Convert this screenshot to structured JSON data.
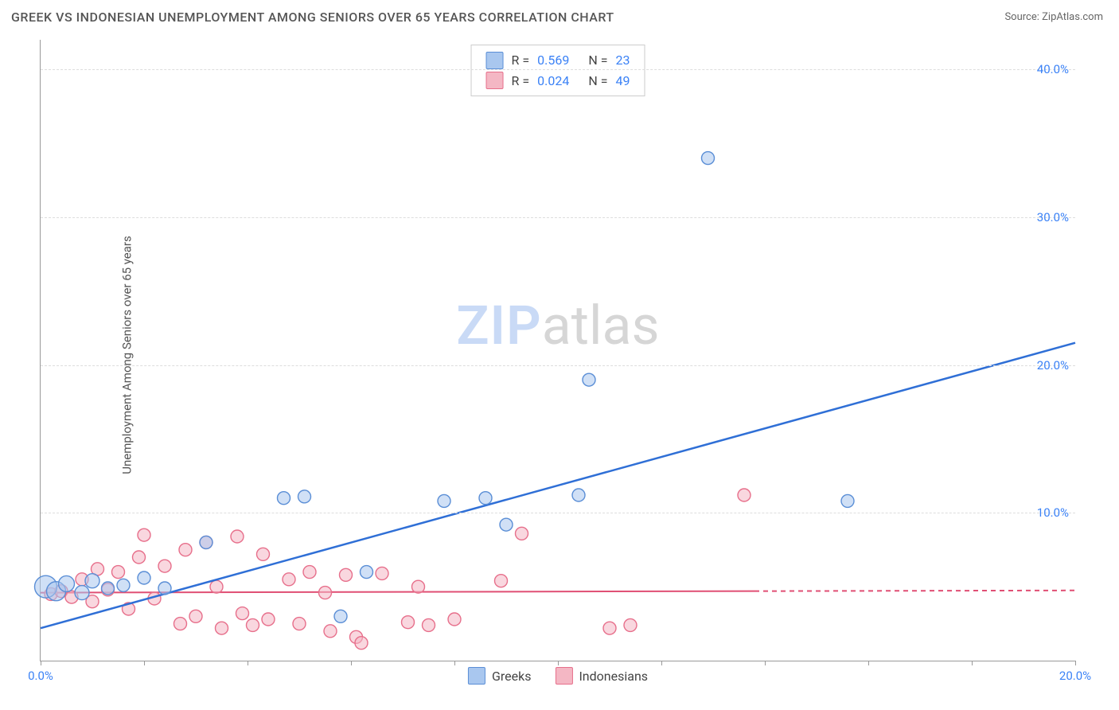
{
  "title": "GREEK VS INDONESIAN UNEMPLOYMENT AMONG SENIORS OVER 65 YEARS CORRELATION CHART",
  "source_label": "Source:",
  "source_name": "ZipAtlas.com",
  "ylabel": "Unemployment Among Seniors over 65 years",
  "watermark_a": "ZIP",
  "watermark_b": "atlas",
  "chart": {
    "type": "scatter",
    "xlim": [
      0,
      20
    ],
    "ylim": [
      0,
      42
    ],
    "xticks": [
      0,
      20
    ],
    "xtick_labels": [
      "0.0%",
      "20.0%"
    ],
    "yticks": [
      10,
      20,
      30,
      40
    ],
    "ytick_labels": [
      "10.0%",
      "20.0%",
      "30.0%",
      "40.0%"
    ],
    "xminor_step": 2,
    "grid_color": "#dddddd",
    "axis_color": "#999999",
    "background_color": "#ffffff",
    "title_fontsize": 16,
    "label_fontsize": 15,
    "tick_color": "#3b82f6",
    "series": [
      {
        "name": "Greeks",
        "fill": "#a9c7ef",
        "stroke": "#5a8ed6",
        "fill_opacity": 0.55,
        "line_color": "#2f6fd6",
        "line_width": 2.5,
        "r_value": "0.569",
        "n_value": "23",
        "trend": {
          "x1": 0,
          "y1": 2.2,
          "x2": 20,
          "y2": 21.5,
          "dashed_from_x": null
        },
        "points": [
          {
            "x": 0.1,
            "y": 5.0,
            "r": 14
          },
          {
            "x": 0.3,
            "y": 4.7,
            "r": 12
          },
          {
            "x": 0.5,
            "y": 5.2,
            "r": 10
          },
          {
            "x": 0.8,
            "y": 4.6,
            "r": 9
          },
          {
            "x": 1.0,
            "y": 5.4,
            "r": 9
          },
          {
            "x": 1.3,
            "y": 4.9,
            "r": 8
          },
          {
            "x": 1.6,
            "y": 5.1,
            "r": 8
          },
          {
            "x": 2.0,
            "y": 5.6,
            "r": 8
          },
          {
            "x": 2.4,
            "y": 4.9,
            "r": 8
          },
          {
            "x": 3.2,
            "y": 8.0,
            "r": 8
          },
          {
            "x": 4.7,
            "y": 11.0,
            "r": 8
          },
          {
            "x": 5.1,
            "y": 11.1,
            "r": 8
          },
          {
            "x": 5.8,
            "y": 3.0,
            "r": 8
          },
          {
            "x": 6.3,
            "y": 6.0,
            "r": 8
          },
          {
            "x": 7.8,
            "y": 10.8,
            "r": 8
          },
          {
            "x": 8.6,
            "y": 11.0,
            "r": 8
          },
          {
            "x": 9.0,
            "y": 9.2,
            "r": 8
          },
          {
            "x": 10.4,
            "y": 11.2,
            "r": 8
          },
          {
            "x": 10.6,
            "y": 19.0,
            "r": 8
          },
          {
            "x": 12.9,
            "y": 34.0,
            "r": 8
          },
          {
            "x": 15.6,
            "y": 10.8,
            "r": 8
          }
        ]
      },
      {
        "name": "Indonesians",
        "fill": "#f4b7c4",
        "stroke": "#e76f8b",
        "fill_opacity": 0.55,
        "line_color": "#e04f74",
        "line_width": 2,
        "r_value": "0.024",
        "n_value": "49",
        "trend": {
          "x1": 0,
          "y1": 4.6,
          "x2": 20,
          "y2": 4.75,
          "dashed_from_x": 13.8
        },
        "points": [
          {
            "x": 0.2,
            "y": 4.5,
            "r": 8
          },
          {
            "x": 0.4,
            "y": 4.7,
            "r": 8
          },
          {
            "x": 0.6,
            "y": 4.3,
            "r": 8
          },
          {
            "x": 0.8,
            "y": 5.5,
            "r": 8
          },
          {
            "x": 1.0,
            "y": 4.0,
            "r": 8
          },
          {
            "x": 1.1,
            "y": 6.2,
            "r": 8
          },
          {
            "x": 1.3,
            "y": 4.8,
            "r": 8
          },
          {
            "x": 1.5,
            "y": 6.0,
            "r": 8
          },
          {
            "x": 1.7,
            "y": 3.5,
            "r": 8
          },
          {
            "x": 1.9,
            "y": 7.0,
            "r": 8
          },
          {
            "x": 2.0,
            "y": 8.5,
            "r": 8
          },
          {
            "x": 2.2,
            "y": 4.2,
            "r": 8
          },
          {
            "x": 2.4,
            "y": 6.4,
            "r": 8
          },
          {
            "x": 2.7,
            "y": 2.5,
            "r": 8
          },
          {
            "x": 2.8,
            "y": 7.5,
            "r": 8
          },
          {
            "x": 3.0,
            "y": 3.0,
            "r": 8
          },
          {
            "x": 3.2,
            "y": 8.0,
            "r": 8
          },
          {
            "x": 3.4,
            "y": 5.0,
            "r": 8
          },
          {
            "x": 3.5,
            "y": 2.2,
            "r": 8
          },
          {
            "x": 3.8,
            "y": 8.4,
            "r": 8
          },
          {
            "x": 3.9,
            "y": 3.2,
            "r": 8
          },
          {
            "x": 4.1,
            "y": 2.4,
            "r": 8
          },
          {
            "x": 4.3,
            "y": 7.2,
            "r": 8
          },
          {
            "x": 4.4,
            "y": 2.8,
            "r": 8
          },
          {
            "x": 4.8,
            "y": 5.5,
            "r": 8
          },
          {
            "x": 5.0,
            "y": 2.5,
            "r": 8
          },
          {
            "x": 5.2,
            "y": 6.0,
            "r": 8
          },
          {
            "x": 5.5,
            "y": 4.6,
            "r": 8
          },
          {
            "x": 5.6,
            "y": 2.0,
            "r": 8
          },
          {
            "x": 5.9,
            "y": 5.8,
            "r": 8
          },
          {
            "x": 6.1,
            "y": 1.6,
            "r": 8
          },
          {
            "x": 6.2,
            "y": 1.2,
            "r": 8
          },
          {
            "x": 6.6,
            "y": 5.9,
            "r": 8
          },
          {
            "x": 7.1,
            "y": 2.6,
            "r": 8
          },
          {
            "x": 7.3,
            "y": 5.0,
            "r": 8
          },
          {
            "x": 7.5,
            "y": 2.4,
            "r": 8
          },
          {
            "x": 8.0,
            "y": 2.8,
            "r": 8
          },
          {
            "x": 8.9,
            "y": 5.4,
            "r": 8
          },
          {
            "x": 9.3,
            "y": 8.6,
            "r": 8
          },
          {
            "x": 11.0,
            "y": 2.2,
            "r": 8
          },
          {
            "x": 11.4,
            "y": 2.4,
            "r": 8
          },
          {
            "x": 13.6,
            "y": 11.2,
            "r": 8
          }
        ]
      }
    ]
  },
  "legend_top": {
    "r_label": "R =",
    "n_label": "N ="
  },
  "legend_bottom": [
    {
      "label": "Greeks",
      "series_idx": 0
    },
    {
      "label": "Indonesians",
      "series_idx": 1
    }
  ]
}
